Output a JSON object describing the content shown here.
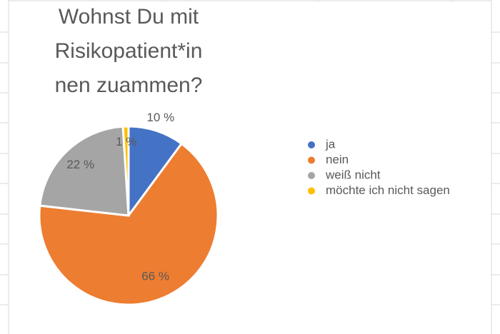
{
  "chart_data": {
    "type": "pie",
    "title": [
      "Wohnst Du mit",
      "Risikopatient*in",
      "nen zuammen?"
    ],
    "categories": [
      "ja",
      "nein",
      "weiß nicht",
      "möchte ich nicht sagen"
    ],
    "values": [
      10,
      66,
      22,
      1
    ],
    "value_labels": [
      "10 %",
      "66 %",
      "22 %",
      "1 %"
    ],
    "colors": [
      "#4472c4",
      "#ed7d31",
      "#a5a5a5",
      "#ffc000"
    ],
    "legend": "right"
  }
}
